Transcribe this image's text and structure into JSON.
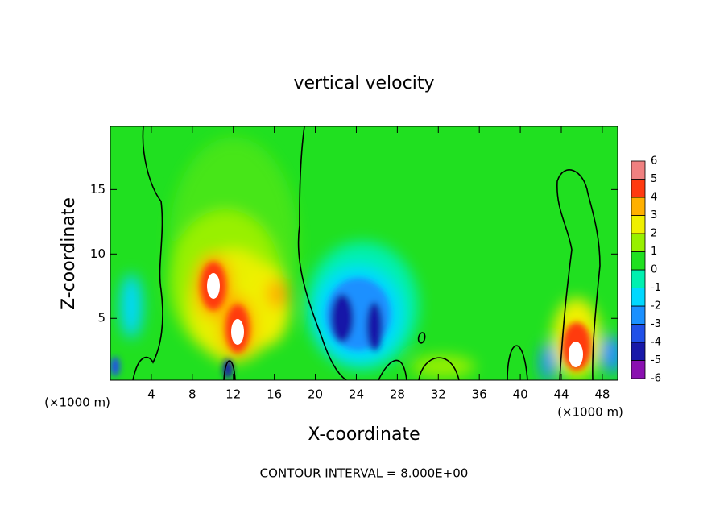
{
  "chart_data": {
    "type": "contour",
    "title": "vertical velocity",
    "x_label": "X-coordinate",
    "y_label": "Z-coordinate",
    "x_unit_left": "(×1000 m)",
    "x_unit_right": "(×1000 m)",
    "footer": "CONTOUR INTERVAL = 8.000E+00",
    "xlim": [
      0,
      49.5
    ],
    "xticks": [
      4,
      8,
      12,
      16,
      20,
      24,
      28,
      32,
      36,
      40,
      44,
      48
    ],
    "ylim": [
      0.2,
      19.9
    ],
    "yticks": [
      5,
      10,
      15
    ],
    "colorbar": {
      "levels": [
        -6,
        -5,
        -4,
        -3,
        -2,
        -1,
        0,
        1,
        2,
        3,
        4,
        5,
        6
      ],
      "colors": [
        "#8a10b0",
        "#1818a8",
        "#2050e8",
        "#1a90ff",
        "#00d8ff",
        "#00f0b0",
        "#20e020",
        "#98f000",
        "#f0f000",
        "#ffb000",
        "#ff3a10",
        "#f08080"
      ]
    }
  }
}
